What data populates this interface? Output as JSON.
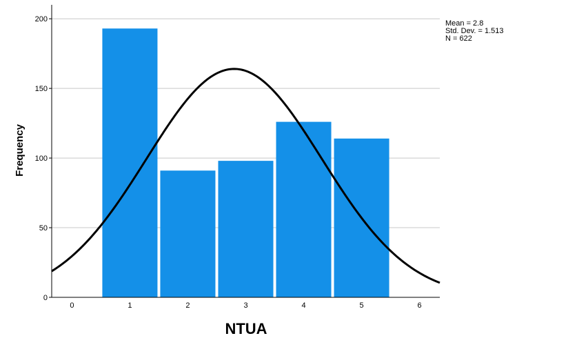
{
  "chart_data": {
    "type": "bar",
    "xlabel": "NTUA",
    "ylabel": "Frequency",
    "x_ticks": [
      "0",
      "1",
      "2",
      "3",
      "4",
      "5",
      "6"
    ],
    "y_ticks": [
      "0",
      "50",
      "100",
      "150",
      "200"
    ],
    "xlim": [
      -0.35,
      6.35
    ],
    "ylim": [
      0,
      210
    ],
    "categories": [
      "1",
      "2",
      "3",
      "4",
      "5"
    ],
    "values": [
      193,
      91,
      98,
      126,
      114
    ],
    "bar_color": "#1490e8",
    "curve_color": "#000000",
    "grid": "horizontal",
    "normal_curve": {
      "mean": 2.8,
      "std_dev": 1.513,
      "n": 622,
      "bin_width": 1
    },
    "stats": {
      "mean_label": "Mean = 2.8",
      "std_label": "Std. Dev. = 1.513",
      "n_label": "N = 622"
    }
  }
}
